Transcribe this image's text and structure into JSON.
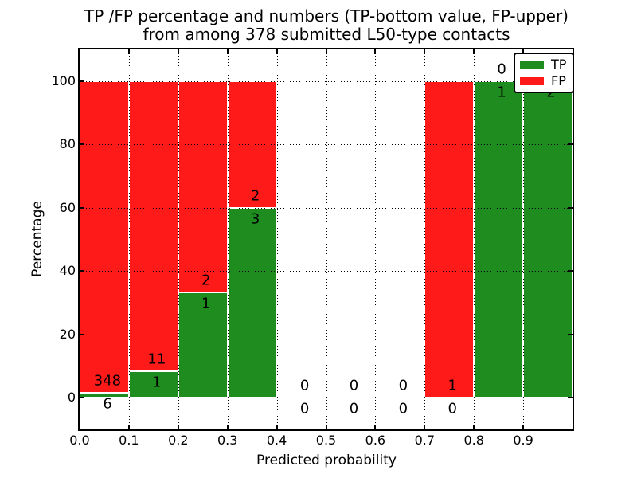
{
  "title": {
    "line1": "TP /FP percentage and numbers (TP-bottom value, FP-upper)",
    "line2": "from among 378 submitted L50-type contacts"
  },
  "axes": {
    "ylabel": "Percentage",
    "xlabel": "Predicted probability",
    "yticks": [
      0,
      20,
      40,
      60,
      80,
      100
    ],
    "xticks": [
      "0.0",
      "0.1",
      "0.2",
      "0.3",
      "0.4",
      "0.5",
      "0.6",
      "0.7",
      "0.8",
      "0.9"
    ],
    "ylim": [
      -10,
      110
    ],
    "xlim": [
      0,
      1
    ],
    "grid": "dotted-black-on-top"
  },
  "legend": {
    "position": "upper-right",
    "items": [
      {
        "label": "TP",
        "color": "#1e8c1e"
      },
      {
        "label": "FP",
        "color": "#ff1a1a"
      }
    ]
  },
  "colors": {
    "tp_green": "#1e8c1e",
    "fp_red": "#ff1a1a",
    "grid": "#000000",
    "background": "#ffffff",
    "bar_edge": "#ffffff"
  },
  "chart_data": {
    "type": "bar",
    "stacked": true,
    "note": "Stacked percentage bars per probability bin; TP count labeled below boundary, FP count above",
    "total_contacts": 378,
    "bins": [
      {
        "range": [
          0.0,
          0.1
        ],
        "tp": 6,
        "fp": 348
      },
      {
        "range": [
          0.1,
          0.2
        ],
        "tp": 1,
        "fp": 11
      },
      {
        "range": [
          0.2,
          0.3
        ],
        "tp": 1,
        "fp": 2
      },
      {
        "range": [
          0.3,
          0.4
        ],
        "tp": 3,
        "fp": 2
      },
      {
        "range": [
          0.4,
          0.5
        ],
        "tp": 0,
        "fp": 0
      },
      {
        "range": [
          0.5,
          0.6
        ],
        "tp": 0,
        "fp": 0
      },
      {
        "range": [
          0.6,
          0.7
        ],
        "tp": 0,
        "fp": 0
      },
      {
        "range": [
          0.7,
          0.8
        ],
        "tp": 0,
        "fp": 1
      },
      {
        "range": [
          0.8,
          0.9
        ],
        "tp": 1,
        "fp": 0
      },
      {
        "range": [
          0.9,
          1.0
        ],
        "tp": 2,
        "fp": 0
      }
    ]
  }
}
